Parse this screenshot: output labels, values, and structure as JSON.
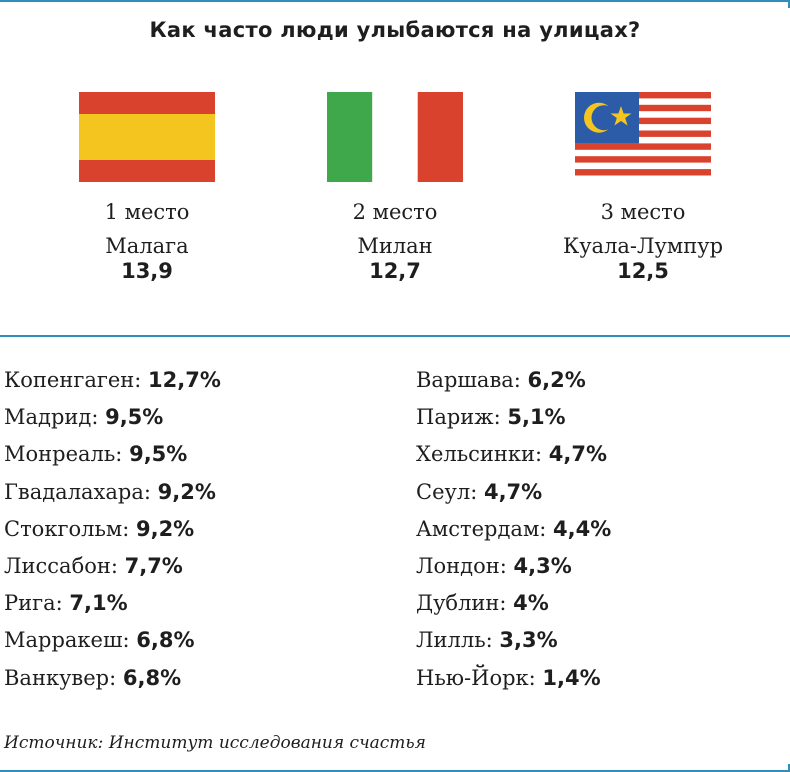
{
  "title": "Как часто люди улыбаются на улицах?",
  "podium": [
    {
      "place": "1 место",
      "city": "Малага",
      "score": "13,9",
      "flag": "spain-flag-icon"
    },
    {
      "place": "2 место",
      "city": "Милан",
      "score": "12,7",
      "flag": "italy-flag-icon"
    },
    {
      "place": "3 место",
      "city": "Куала-Лумпур",
      "score": "12,5",
      "flag": "malaysia-flag-icon"
    }
  ],
  "left_list": [
    {
      "city": "Копенгаген:",
      "value": "12,7%"
    },
    {
      "city": "Мадрид:",
      "value": "9,5%"
    },
    {
      "city": "Монреаль:",
      "value": "9,5%"
    },
    {
      "city": "Гвадалахара:",
      "value": "9,2%"
    },
    {
      "city": "Стокгольм:",
      "value": "9,2%"
    },
    {
      "city": "Лиссабон:",
      "value": "7,7%"
    },
    {
      "city": "Рига:",
      "value": "7,1%"
    },
    {
      "city": "Марракеш:",
      "value": "6,8%"
    },
    {
      "city": "Ванкувер:",
      "value": "6,8%"
    }
  ],
  "right_list": [
    {
      "city": "Варшава:",
      "value": "6,2%"
    },
    {
      "city": "Париж:",
      "value": "5,1%"
    },
    {
      "city": "Хельсинки:",
      "value": "4,7%"
    },
    {
      "city": "Сеул:",
      "value": "4,7%"
    },
    {
      "city": "Амстердам:",
      "value": "4,4%"
    },
    {
      "city": "Лондон:",
      "value": "4,3%"
    },
    {
      "city": "Дублин:",
      "value": "4%"
    },
    {
      "city": "Лилль:",
      "value": "3,3%"
    },
    {
      "city": "Нью-Йорк:",
      "value": "1,4%"
    }
  ],
  "source": "Источник: Институт исследования счастья",
  "colors": {
    "accent": "#2f8fb8",
    "red": "#d9432e",
    "yellow": "#f4c51f",
    "green": "#3fa84a",
    "blue": "#2c5ba8"
  }
}
